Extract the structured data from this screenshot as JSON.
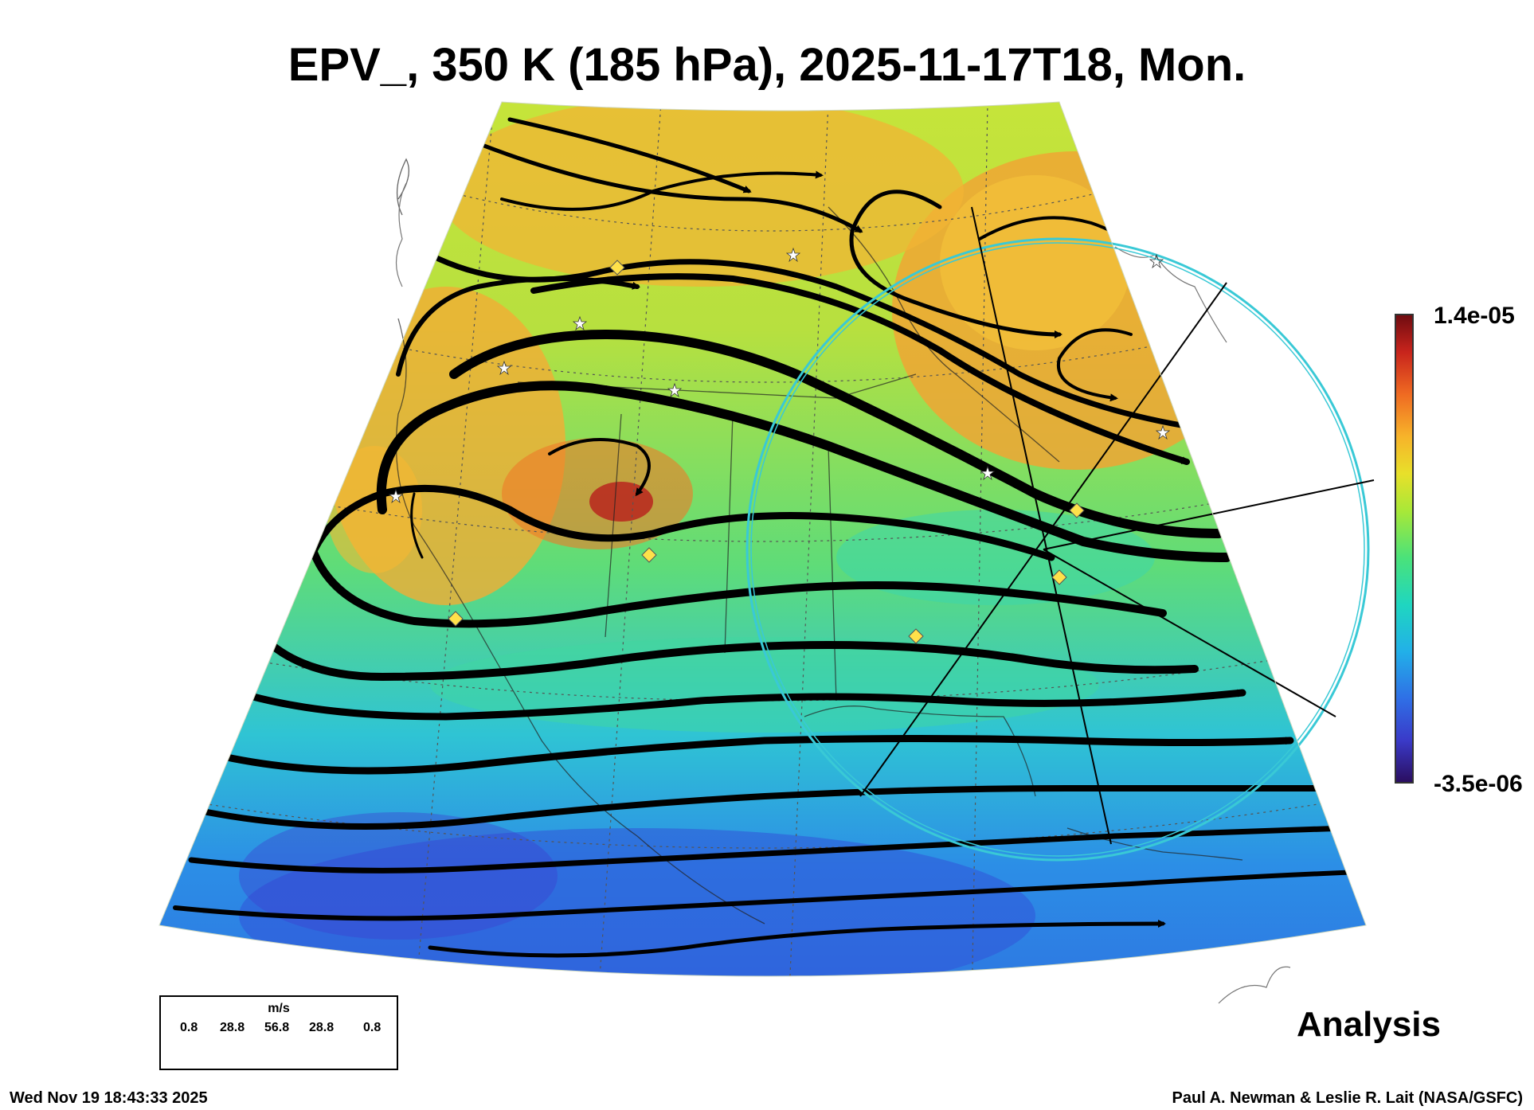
{
  "title": "EPV_, 350 K (185 hPa), 2025-11-17T18, Mon.",
  "colorbar": {
    "max_label": "1.4e-05",
    "min_label": "-3.5e-06",
    "colors": [
      "#2a0d5e",
      "#3a3ac8",
      "#2f6fe6",
      "#22b0e8",
      "#1fd6c0",
      "#4ae27a",
      "#a8e838",
      "#e8e02a",
      "#f7b32a",
      "#ef6a22",
      "#c8241c",
      "#6e0b10"
    ]
  },
  "legend": {
    "unit": "m/s",
    "ticks": [
      "0.8",
      "28.8",
      "56.8",
      "28.8",
      "0.8"
    ]
  },
  "label_analysis": "Analysis",
  "timestamp": "Wed Nov 19 18:43:33 2025",
  "credit": "Paul A. Newman & Leslie R. Lait (NASA/GSFC)",
  "colors": {
    "circle": "#39c9d6",
    "marker_star": "#ffffff",
    "marker_diamond": "#ffe14a"
  },
  "icons": [
    "star-marker-icon",
    "diamond-marker-icon",
    "arrow-head-icon"
  ]
}
